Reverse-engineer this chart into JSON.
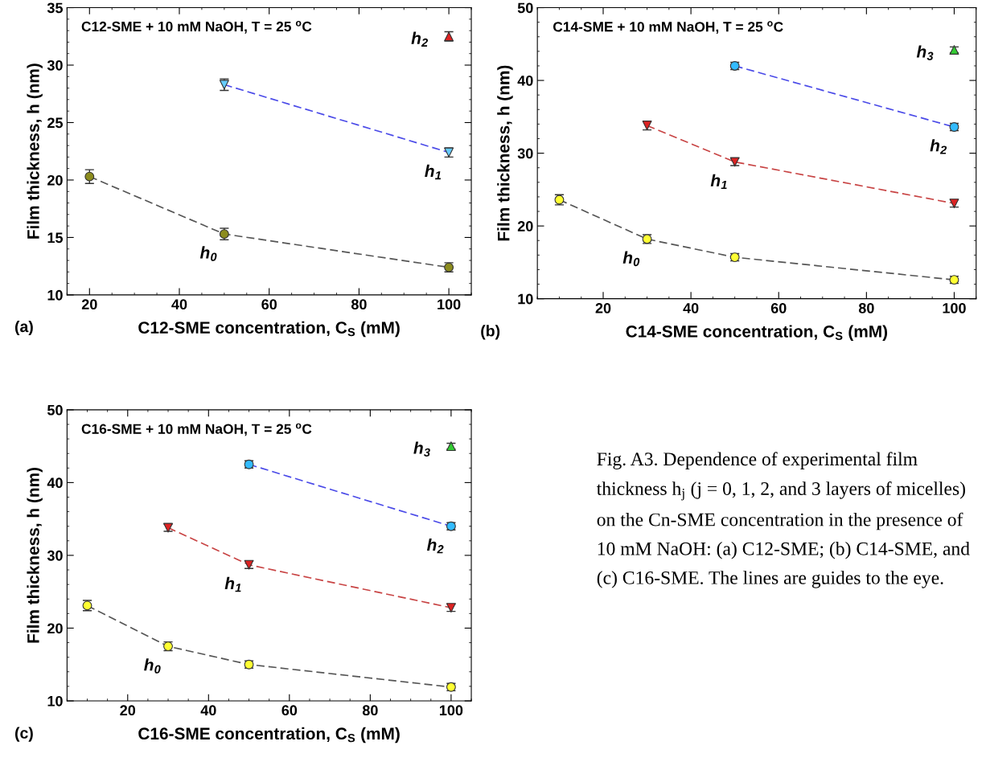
{
  "chart_data": [
    {
      "type": "scatter",
      "xlabel": "C12-SME concentration, C$_{S}$ (mM)",
      "ylabel": "Film thickness, h (nm)",
      "xlim": [
        15,
        105
      ],
      "ylim": [
        10,
        35
      ],
      "xticks": [
        20,
        40,
        60,
        80,
        100
      ],
      "yticks": [
        10,
        15,
        20,
        25,
        30,
        35
      ],
      "grid": false,
      "legend": false,
      "annotations": [
        "C12-SME + 10 mM NaOH, T = 25 $^{o}$C",
        "(a)"
      ],
      "series": [
        {
          "type": "line",
          "color": "#555555",
          "line_style": "dashed",
          "marker": "none",
          "x": [
            20,
            50,
            100
          ],
          "values": [
            20.3,
            15.3,
            12.4
          ]
        },
        {
          "type": "line",
          "color": "#4a4ae8",
          "line_style": "dashed",
          "marker": "none",
          "x": [
            50,
            100
          ],
          "values": [
            28.3,
            22.4
          ]
        },
        {
          "type": "scatter",
          "name": "h$_{0}$",
          "color": "#8c8c1e",
          "marker": "circle",
          "x": [
            20,
            50,
            100
          ],
          "values": [
            20.3,
            15.3,
            12.4
          ],
          "errors": [
            0.6,
            0.5,
            0.4
          ]
        },
        {
          "type": "scatter",
          "name": "h$_{1}$",
          "color": "#66ccff",
          "marker": "triangle_down",
          "x": [
            50,
            100
          ],
          "values": [
            28.3,
            22.4
          ],
          "errors": [
            0.5,
            0.4
          ]
        },
        {
          "type": "scatter",
          "name": "h$_{2}$",
          "color": "#dd2222",
          "marker": "triangle",
          "x": [
            100
          ],
          "values": [
            32.5
          ],
          "errors": [
            0.4
          ]
        }
      ]
    },
    {
      "type": "scatter",
      "xlabel": "C14-SME concentration, C$_{S}$ (mM)",
      "ylabel": "Film thickness, h (nm)",
      "xlim": [
        5,
        105
      ],
      "ylim": [
        10,
        50
      ],
      "xticks": [
        20,
        40,
        60,
        80,
        100
      ],
      "yticks": [
        10,
        20,
        30,
        40,
        50
      ],
      "grid": false,
      "legend": false,
      "annotations": [
        "C14-SME + 10 mM NaOH, T = 25 $^{o}$C",
        "(b)"
      ],
      "series": [
        {
          "type": "line",
          "color": "#555555",
          "line_style": "dashed",
          "marker": "none",
          "x": [
            10,
            30,
            50,
            100
          ],
          "values": [
            23.6,
            18.2,
            15.7,
            12.6
          ]
        },
        {
          "type": "line",
          "color": "#c84444",
          "line_style": "dashed",
          "marker": "none",
          "x": [
            30,
            50,
            100
          ],
          "values": [
            33.8,
            28.8,
            23.1
          ]
        },
        {
          "type": "line",
          "color": "#4a4ae8",
          "line_style": "dashed",
          "marker": "none",
          "x": [
            50,
            100
          ],
          "values": [
            42.0,
            33.6
          ]
        },
        {
          "type": "scatter",
          "name": "h$_{0}$",
          "color": "#ffff33",
          "marker": "circle",
          "x": [
            10,
            30,
            50,
            100
          ],
          "values": [
            23.6,
            18.2,
            15.7,
            12.6
          ],
          "errors": [
            0.7,
            0.6,
            0.5,
            0.5
          ]
        },
        {
          "type": "scatter",
          "name": "h$_{1}$",
          "color": "#dd2222",
          "marker": "triangle_down",
          "x": [
            30,
            50,
            100
          ],
          "values": [
            33.8,
            28.8,
            23.1
          ],
          "errors": [
            0.6,
            0.5,
            0.5
          ]
        },
        {
          "type": "scatter",
          "name": "h$_{2}$",
          "color": "#33bbff",
          "marker": "circle",
          "x": [
            50,
            100
          ],
          "values": [
            42.0,
            33.6
          ],
          "errors": [
            0.5,
            0.5
          ]
        },
        {
          "type": "scatter",
          "name": "h$_{3}$",
          "color": "#33cc33",
          "marker": "triangle",
          "x": [
            100
          ],
          "values": [
            44.2
          ],
          "errors": [
            0.4
          ]
        }
      ]
    },
    {
      "type": "scatter",
      "xlabel": "C16-SME concentration, C$_{S}$ (mM)",
      "ylabel": "Film thickness, h (nm)",
      "xlim": [
        5,
        105
      ],
      "ylim": [
        10,
        50
      ],
      "xticks": [
        20,
        40,
        60,
        80,
        100
      ],
      "yticks": [
        10,
        20,
        30,
        40,
        50
      ],
      "grid": false,
      "legend": false,
      "annotations": [
        "C16-SME + 10 mM NaOH, T = 25 $^{o}$C",
        "(c)"
      ],
      "series": [
        {
          "type": "line",
          "color": "#555555",
          "line_style": "dashed",
          "marker": "none",
          "x": [
            10,
            30,
            50,
            100
          ],
          "values": [
            23.1,
            17.5,
            15.0,
            11.9
          ]
        },
        {
          "type": "line",
          "color": "#c84444",
          "line_style": "dashed",
          "marker": "none",
          "x": [
            30,
            50,
            100
          ],
          "values": [
            33.8,
            28.7,
            22.8
          ]
        },
        {
          "type": "line",
          "color": "#4a4ae8",
          "line_style": "dashed",
          "marker": "none",
          "x": [
            50,
            100
          ],
          "values": [
            42.5,
            34.0
          ]
        },
        {
          "type": "scatter",
          "name": "h$_{0}$",
          "color": "#ffff33",
          "marker": "circle",
          "x": [
            10,
            30,
            50,
            100
          ],
          "values": [
            23.1,
            17.5,
            15.0,
            11.9
          ],
          "errors": [
            0.7,
            0.6,
            0.5,
            0.5
          ]
        },
        {
          "type": "scatter",
          "name": "h$_{1}$",
          "color": "#dd2222",
          "marker": "triangle_down",
          "x": [
            30,
            50,
            100
          ],
          "values": [
            33.8,
            28.7,
            22.8
          ],
          "errors": [
            0.5,
            0.5,
            0.5
          ]
        },
        {
          "type": "scatter",
          "name": "h$_{2}$",
          "color": "#33bbff",
          "marker": "circle",
          "x": [
            50,
            100
          ],
          "values": [
            42.5,
            34.0
          ],
          "errors": [
            0.5,
            0.5
          ]
        },
        {
          "type": "scatter",
          "name": "h$_{3}$",
          "color": "#33cc33",
          "marker": "triangle",
          "x": [
            100
          ],
          "values": [
            45.0
          ],
          "errors": [
            0.4
          ]
        }
      ]
    },
    {
      "type": "other",
      "annotations": [
        "Fig. A3. Dependence of experimental film thickness h$_{j}$ (j = 0, 1, 2, and 3 layers of micelles) on the Cn-SME concentration in the presence of 10 mM NaOH: (a) C12-SME; (b) C14-SME, and (c) C16-SME. The lines are guides to the eye."
      ]
    }
  ]
}
